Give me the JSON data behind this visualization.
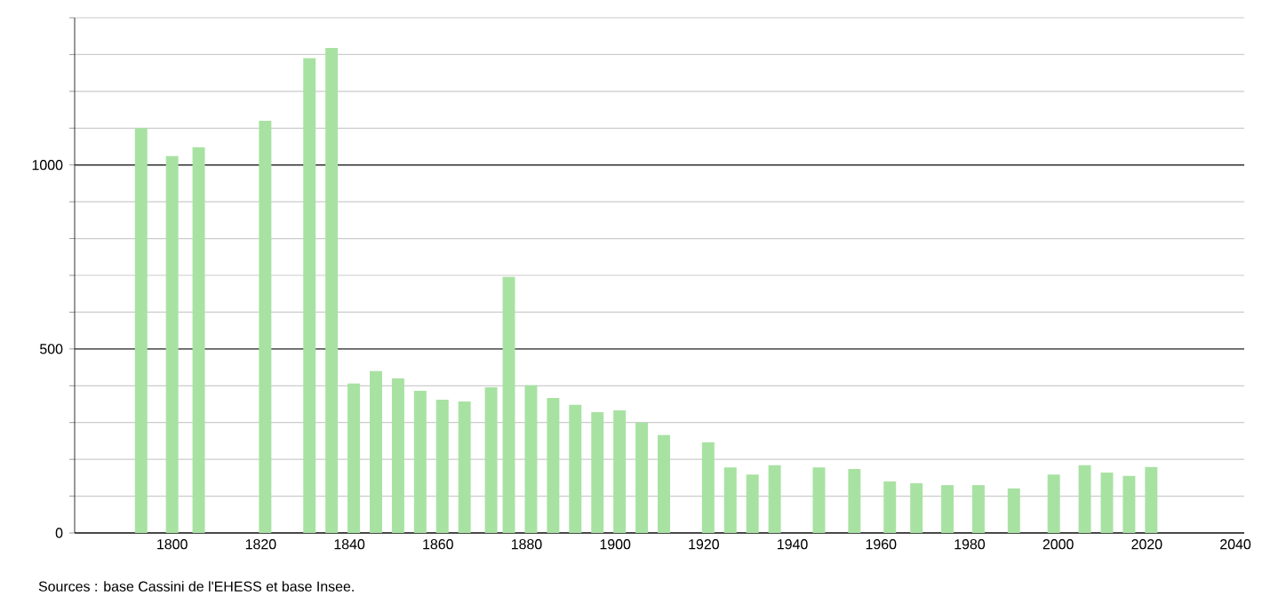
{
  "chart_data": {
    "type": "bar",
    "x": [
      1793,
      1800,
      1806,
      1821,
      1831,
      1836,
      1841,
      1846,
      1851,
      1856,
      1861,
      1866,
      1872,
      1876,
      1881,
      1886,
      1891,
      1896,
      1901,
      1906,
      1911,
      1921,
      1926,
      1931,
      1936,
      1946,
      1954,
      1962,
      1968,
      1975,
      1982,
      1990,
      1999,
      2006,
      2011,
      2016,
      2021
    ],
    "values": [
      1100,
      1024,
      1048,
      1120,
      1290,
      1318,
      406,
      440,
      420,
      386,
      362,
      357,
      396,
      696,
      401,
      367,
      348,
      328,
      333,
      300,
      266,
      246,
      178,
      159,
      184,
      178,
      174,
      140,
      135,
      130,
      130,
      121,
      159,
      184,
      164,
      155,
      179
    ],
    "color": "#a8e2a2",
    "xlim": [
      1778,
      2042
    ],
    "ylim": [
      0,
      1400
    ],
    "xticks": [
      1800,
      1820,
      1840,
      1860,
      1880,
      1900,
      1920,
      1940,
      1960,
      1980,
      2000,
      2020,
      2040
    ],
    "yticks": [
      0,
      {
        "value": 100,
        "label": null
      },
      {
        "value": 200,
        "label": null
      },
      {
        "value": 300,
        "label": null
      },
      {
        "value": 400,
        "label": null
      },
      500,
      {
        "value": 600,
        "label": null
      },
      {
        "value": 700,
        "label": null
      },
      {
        "value": 800,
        "label": null
      },
      {
        "value": 900,
        "label": null
      },
      1000,
      {
        "value": 1100,
        "label": null
      },
      {
        "value": 1200,
        "label": null
      },
      {
        "value": 1300,
        "label": null
      },
      {
        "value": 1400,
        "label": null
      }
    ],
    "grid": "y",
    "annotations": [
      "Sources : base Cassini de l'EHESS et base Insee."
    ]
  }
}
